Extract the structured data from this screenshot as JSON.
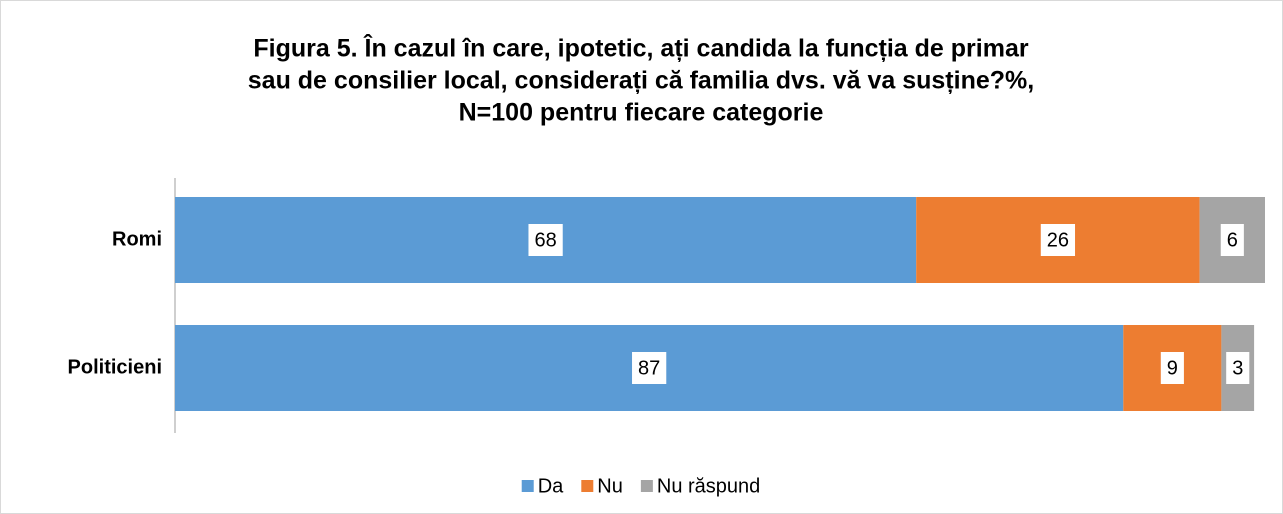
{
  "chart_data": {
    "type": "stacked-bar-horizontal",
    "title": [
      "Figura 5. În cazul în care, ipotetic, ați candida la funcția de primar",
      "sau de consilier local, considerați că familia dvs. vă va susține?%,",
      "N=100 pentru fiecare categorie"
    ],
    "categories": [
      "Romi",
      "Politicieni"
    ],
    "series": [
      {
        "name": "Da",
        "color": "#5b9bd5",
        "values": [
          68,
          87
        ]
      },
      {
        "name": "Nu",
        "color": "#ed7d31",
        "values": [
          26,
          9
        ]
      },
      {
        "name": "Nu răspund",
        "color": "#a5a5a5",
        "values": [
          6,
          3
        ]
      }
    ],
    "xlim": [
      0,
      100
    ],
    "legend": "bottom"
  }
}
